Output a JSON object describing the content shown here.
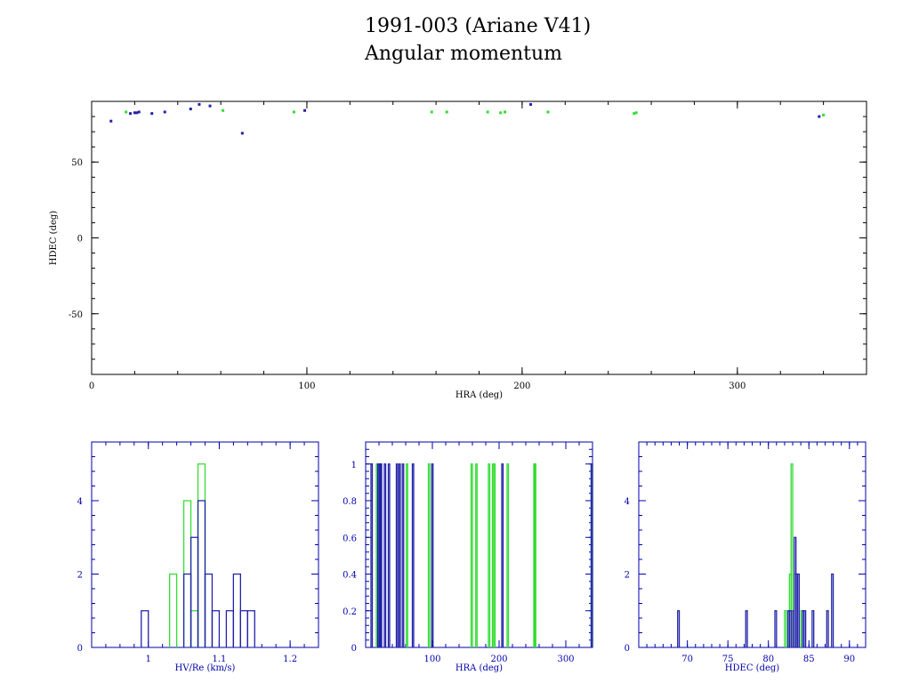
{
  "title": {
    "line1": "1991-003 (Ariane V41)",
    "line2": "Angular momentum"
  },
  "colors": {
    "series_a": "#2222aa",
    "series_b": "#33dd33",
    "frame_top": "#000000",
    "frame_bottom": "#0000aa"
  },
  "chart_data": [
    {
      "id": "scatter",
      "type": "scatter",
      "xlabel": "HRA (deg)",
      "ylabel": "HDEC (deg)",
      "xlim": [
        0,
        360
      ],
      "ylim": [
        -90,
        90
      ],
      "xticks": [
        0,
        100,
        200,
        300
      ],
      "yticks": [
        50,
        0,
        -50
      ],
      "series": [
        {
          "color": "blue",
          "points": [
            [
              9,
              77
            ],
            [
              18,
              82
            ],
            [
              20,
              82.5
            ],
            [
              21,
              82.5
            ],
            [
              22,
              83
            ],
            [
              28,
              82
            ],
            [
              34,
              83
            ],
            [
              46,
              85
            ],
            [
              50,
              88
            ],
            [
              55,
              87
            ],
            [
              70,
              69
            ],
            [
              99,
              84
            ],
            [
              204,
              88
            ],
            [
              338,
              80
            ]
          ]
        },
        {
          "color": "green",
          "points": [
            [
              16,
              83
            ],
            [
              61,
              84
            ],
            [
              94,
              83
            ],
            [
              158,
              83
            ],
            [
              165,
              83
            ],
            [
              184,
              83
            ],
            [
              190,
              82.5
            ],
            [
              192,
              83
            ],
            [
              212,
              83
            ],
            [
              252,
              82
            ],
            [
              253,
              82.5
            ],
            [
              340,
              81
            ]
          ]
        }
      ]
    },
    {
      "id": "hist-hv",
      "type": "bar",
      "xlabel": "HV/Re (km/s)",
      "xlim": [
        0.92,
        1.24
      ],
      "ylim": [
        0,
        5.6
      ],
      "xticks": [
        1.0,
        1.1,
        1.2
      ],
      "yticks": [
        0,
        2,
        4
      ],
      "bin_width": 0.01,
      "series": [
        {
          "color": "blue",
          "bins": [
            [
              0.99,
              1
            ],
            [
              1.05,
              2
            ],
            [
              1.06,
              3
            ],
            [
              1.07,
              4
            ],
            [
              1.08,
              2
            ],
            [
              1.09,
              1
            ],
            [
              1.11,
              1
            ],
            [
              1.12,
              2
            ],
            [
              1.13,
              1
            ],
            [
              1.14,
              1
            ]
          ]
        },
        {
          "color": "green",
          "bins": [
            [
              1.03,
              2
            ],
            [
              1.05,
              4
            ],
            [
              1.06,
              1
            ],
            [
              1.07,
              5
            ]
          ]
        }
      ]
    },
    {
      "id": "hist-hra",
      "type": "bar",
      "xlabel": "HRA (deg)",
      "xlim": [
        0,
        340
      ],
      "ylim": [
        0,
        1.12
      ],
      "xticks": [
        100,
        200,
        300
      ],
      "yticks": [
        0,
        0.2,
        0.4,
        0.6,
        0.8,
        1
      ],
      "bin_width": 2,
      "series": [
        {
          "color": "blue",
          "bins": [
            [
              8,
              1
            ],
            [
              18,
              1
            ],
            [
              20,
              1
            ],
            [
              21,
              1
            ],
            [
              22,
              1
            ],
            [
              28,
              1
            ],
            [
              34,
              1
            ],
            [
              46,
              1
            ],
            [
              50,
              1
            ],
            [
              55,
              1
            ],
            [
              70,
              1
            ],
            [
              99,
              1
            ],
            [
              204,
              1
            ],
            [
              338,
              1
            ]
          ]
        },
        {
          "color": "green",
          "bins": [
            [
              16,
              1
            ],
            [
              61,
              1
            ],
            [
              94,
              1
            ],
            [
              158,
              1
            ],
            [
              165,
              1
            ],
            [
              184,
              1
            ],
            [
              190,
              1
            ],
            [
              192,
              1
            ],
            [
              212,
              1
            ],
            [
              252,
              1
            ],
            [
              253,
              1
            ],
            [
              338,
              1
            ]
          ]
        }
      ]
    },
    {
      "id": "hist-hdec",
      "type": "bar",
      "xlabel": "HDEC (deg)",
      "xlim": [
        64,
        92
      ],
      "ylim": [
        0,
        5.6
      ],
      "xticks": [
        70,
        75,
        80,
        85,
        90
      ],
      "yticks": [
        0,
        2,
        4
      ],
      "bin_width": 0.2,
      "series": [
        {
          "color": "blue",
          "bins": [
            [
              68.8,
              1
            ],
            [
              77.2,
              1
            ],
            [
              80.8,
              1
            ],
            [
              82.4,
              1
            ],
            [
              82.6,
              1
            ],
            [
              83.0,
              1
            ],
            [
              83.2,
              3
            ],
            [
              83.4,
              2
            ],
            [
              83.6,
              2
            ],
            [
              84.2,
              1
            ],
            [
              84.4,
              1
            ],
            [
              85.4,
              1
            ],
            [
              87.2,
              1
            ],
            [
              87.8,
              2
            ]
          ]
        },
        {
          "color": "green",
          "bins": [
            [
              82.0,
              1
            ],
            [
              82.6,
              2
            ],
            [
              82.8,
              5
            ],
            [
              83.2,
              2
            ],
            [
              84.0,
              1
            ]
          ]
        }
      ]
    }
  ]
}
